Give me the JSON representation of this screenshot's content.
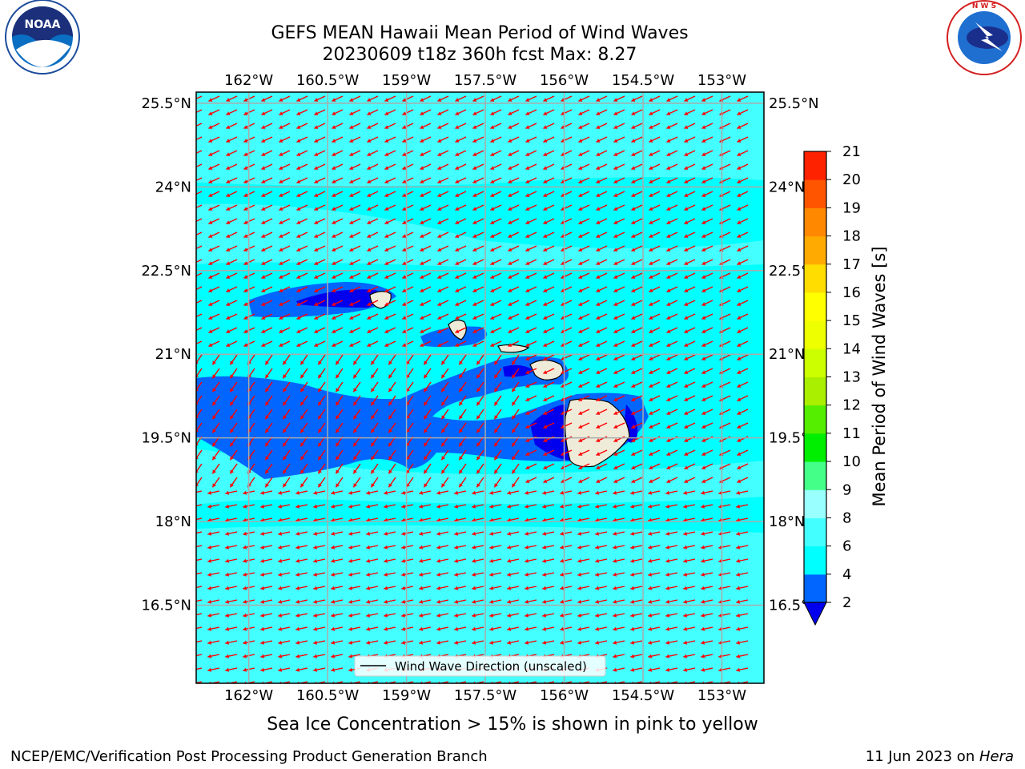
{
  "title": {
    "line1": "GEFS MEAN Hawaii Mean Period of Wind Waves",
    "line2": "20230609 t18z 360h fcst   Max: 8.27"
  },
  "logos": {
    "left": {
      "name": "noaa-logo",
      "text": "NOAA",
      "ring_text": "NATIONAL OCEANIC AND ATMOSPHERIC ADMINISTRATION · U.S. DEPARTMENT OF COMMERCE"
    },
    "right": {
      "name": "nws-logo",
      "ring_text": "NATIONAL WEATHER SERVICE"
    }
  },
  "map": {
    "lon_ticks": [
      "162°W",
      "160.5°W",
      "159°W",
      "157.5°W",
      "156°W",
      "154.5°W",
      "153°W"
    ],
    "lat_ticks": [
      "25.5°N",
      "24°N",
      "22.5°N",
      "21°N",
      "19.5°N",
      "18°N",
      "16.5°N"
    ],
    "lon_values": [
      -162,
      -160.5,
      -159,
      -157.5,
      -156,
      -154.5,
      -153
    ],
    "lat_values": [
      25.5,
      24,
      22.5,
      21,
      19.5,
      18,
      16.5
    ],
    "lon_range": [
      -163,
      -152.2
    ],
    "lat_range": [
      15.1,
      25.7
    ],
    "legend_label": "Wind Wave Direction (unscaled)",
    "legend_placement": "bottom-center",
    "grid": true,
    "ocean_color": "#00ffff",
    "arrow_color": "#ff0000",
    "land_color": "#efebd9"
  },
  "colorbar": {
    "label": "Mean Period of Wind Waves [s]",
    "tick_labels": [
      "2",
      "4",
      "6",
      "8",
      "9",
      "10",
      "11",
      "12",
      "13",
      "14",
      "15",
      "16",
      "17",
      "18",
      "19",
      "20",
      "21"
    ],
    "colors": [
      "#0066ff",
      "#00ffff",
      "#44ffff",
      "#99ffff",
      "#44ff88",
      "#00ee00",
      "#55ee00",
      "#aaee00",
      "#ccff00",
      "#eeff00",
      "#ffff00",
      "#ffdd00",
      "#ffaa00",
      "#ff8800",
      "#ff5500",
      "#ff2200",
      "#ff0000"
    ],
    "extend_color": "#0000ee"
  },
  "note": "Sea Ice Concentration > 15% is shown in pink to yellow",
  "footer": {
    "left": "NCEP/EMC/Verification Post Processing Product Generation Branch",
    "right_date": "11 Jun 2023 on ",
    "right_host": "Hera"
  },
  "chart_data": {
    "type": "heatmap",
    "title": "GEFS MEAN Hawaii Mean Period of Wind Waves",
    "subtitle": "20230609 t18z 360h fcst   Max: 8.27",
    "variable": "Mean Period of Wind Waves [s]",
    "max_value": 8.27,
    "x_ticks": [
      "162°W",
      "160.5°W",
      "159°W",
      "157.5°W",
      "156°W",
      "154.5°W",
      "153°W"
    ],
    "y_ticks": [
      "25.5°N",
      "24°N",
      "22.5°N",
      "21°N",
      "19.5°N",
      "18°N",
      "16.5°N"
    ],
    "colorbar_levels": [
      2,
      4,
      6,
      8,
      9,
      10,
      11,
      12,
      13,
      14,
      15,
      16,
      17,
      18,
      19,
      20,
      21
    ],
    "vector_field": "Wind Wave Direction (unscaled)",
    "dominant_direction": "toward west-southwest"
  }
}
